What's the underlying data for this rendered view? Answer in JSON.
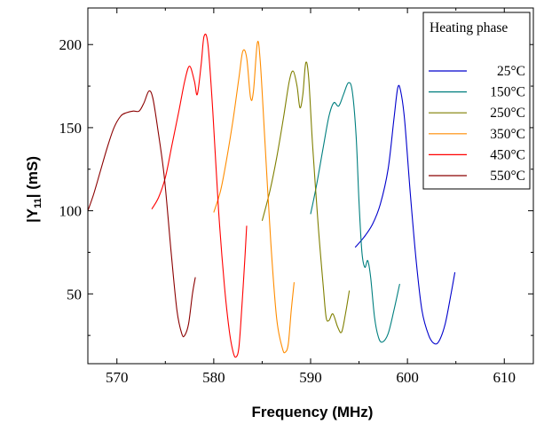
{
  "chart_data": {
    "type": "line",
    "title": "",
    "xlabel": "Frequency (MHz)",
    "ylabel_parts": {
      "pre": "|Y",
      "sub": "11",
      "post": "| (mS)"
    },
    "xlim": [
      567,
      613
    ],
    "ylim": [
      8,
      222
    ],
    "x_ticks": [
      570,
      580,
      590,
      600,
      610
    ],
    "y_ticks": [
      50,
      100,
      150,
      200
    ],
    "x_tick_labels": [
      "570",
      "580",
      "590",
      "600",
      "610"
    ],
    "y_tick_labels": [
      "50",
      "100",
      "150",
      "200"
    ],
    "grid": false,
    "legend": {
      "title": "Heating phase",
      "placement": "top-right"
    },
    "series": [
      {
        "name": "25°C",
        "color": "#0000cc",
        "points": [
          [
            594.6,
            78
          ],
          [
            595.5,
            84
          ],
          [
            596.4,
            92
          ],
          [
            597.2,
            104
          ],
          [
            598.0,
            125
          ],
          [
            598.6,
            155
          ],
          [
            599.0,
            174
          ],
          [
            599.3,
            172
          ],
          [
            599.7,
            155
          ],
          [
            600.3,
            110
          ],
          [
            600.9,
            70
          ],
          [
            601.5,
            40
          ],
          [
            602.2,
            25
          ],
          [
            602.8,
            20
          ],
          [
            603.3,
            22
          ],
          [
            603.9,
            32
          ],
          [
            604.5,
            50
          ],
          [
            604.9,
            63
          ]
        ]
      },
      {
        "name": "150°C",
        "color": "#007f7f",
        "points": [
          [
            590.0,
            98
          ],
          [
            590.6,
            115
          ],
          [
            591.3,
            138
          ],
          [
            591.9,
            157
          ],
          [
            592.4,
            165
          ],
          [
            592.9,
            163
          ],
          [
            593.4,
            170
          ],
          [
            593.9,
            177
          ],
          [
            594.3,
            172
          ],
          [
            594.7,
            145
          ],
          [
            595.0,
            105
          ],
          [
            595.3,
            75
          ],
          [
            595.6,
            66
          ],
          [
            595.9,
            70
          ],
          [
            596.2,
            60
          ],
          [
            596.6,
            36
          ],
          [
            597.0,
            24
          ],
          [
            597.4,
            21
          ],
          [
            598.0,
            26
          ],
          [
            598.6,
            40
          ],
          [
            599.2,
            56
          ]
        ]
      },
      {
        "name": "250°C",
        "color": "#7f7f00",
        "points": [
          [
            585.0,
            94
          ],
          [
            585.8,
            112
          ],
          [
            586.5,
            132
          ],
          [
            587.2,
            156
          ],
          [
            587.8,
            178
          ],
          [
            588.2,
            184
          ],
          [
            588.6,
            175
          ],
          [
            588.9,
            162
          ],
          [
            589.2,
            170
          ],
          [
            589.5,
            189
          ],
          [
            589.8,
            180
          ],
          [
            590.2,
            140
          ],
          [
            590.8,
            90
          ],
          [
            591.3,
            55
          ],
          [
            591.6,
            36
          ],
          [
            591.9,
            34
          ],
          [
            592.3,
            38
          ],
          [
            592.8,
            30
          ],
          [
            593.2,
            27
          ],
          [
            593.6,
            38
          ],
          [
            594.0,
            52
          ]
        ]
      },
      {
        "name": "350°C",
        "color": "#ff8c00",
        "points": [
          [
            580.0,
            99
          ],
          [
            580.7,
            112
          ],
          [
            581.3,
            130
          ],
          [
            582.0,
            155
          ],
          [
            582.6,
            180
          ],
          [
            583.0,
            196
          ],
          [
            583.4,
            192
          ],
          [
            583.8,
            168
          ],
          [
            584.1,
            172
          ],
          [
            584.5,
            201
          ],
          [
            584.8,
            190
          ],
          [
            585.3,
            140
          ],
          [
            585.9,
            80
          ],
          [
            586.5,
            35
          ],
          [
            587.1,
            17
          ],
          [
            587.4,
            15
          ],
          [
            587.7,
            20
          ],
          [
            588.0,
            40
          ],
          [
            588.3,
            57
          ]
        ]
      },
      {
        "name": "450°C",
        "color": "#ff0000",
        "points": [
          [
            573.6,
            101
          ],
          [
            574.3,
            108
          ],
          [
            575.0,
            120
          ],
          [
            575.7,
            140
          ],
          [
            576.4,
            160
          ],
          [
            577.0,
            178
          ],
          [
            577.5,
            187
          ],
          [
            578.0,
            178
          ],
          [
            578.3,
            170
          ],
          [
            578.7,
            188
          ],
          [
            579.0,
            205
          ],
          [
            579.4,
            200
          ],
          [
            579.9,
            160
          ],
          [
            580.5,
            100
          ],
          [
            581.1,
            55
          ],
          [
            581.6,
            28
          ],
          [
            582.0,
            15
          ],
          [
            582.3,
            12
          ],
          [
            582.6,
            18
          ],
          [
            582.9,
            42
          ],
          [
            583.2,
            70
          ],
          [
            583.4,
            91
          ]
        ]
      },
      {
        "name": "550°C",
        "color": "#8b0000",
        "points": [
          [
            567.0,
            100
          ],
          [
            567.6,
            110
          ],
          [
            568.3,
            124
          ],
          [
            569.0,
            138
          ],
          [
            569.7,
            150
          ],
          [
            570.4,
            157
          ],
          [
            571.0,
            159
          ],
          [
            571.7,
            160
          ],
          [
            572.3,
            160
          ],
          [
            572.8,
            165
          ],
          [
            573.3,
            172
          ],
          [
            573.7,
            168
          ],
          [
            574.2,
            150
          ],
          [
            574.9,
            120
          ],
          [
            575.6,
            75
          ],
          [
            576.2,
            40
          ],
          [
            576.7,
            26
          ],
          [
            577.0,
            25
          ],
          [
            577.4,
            32
          ],
          [
            577.8,
            50
          ],
          [
            578.1,
            60
          ]
        ]
      }
    ]
  }
}
